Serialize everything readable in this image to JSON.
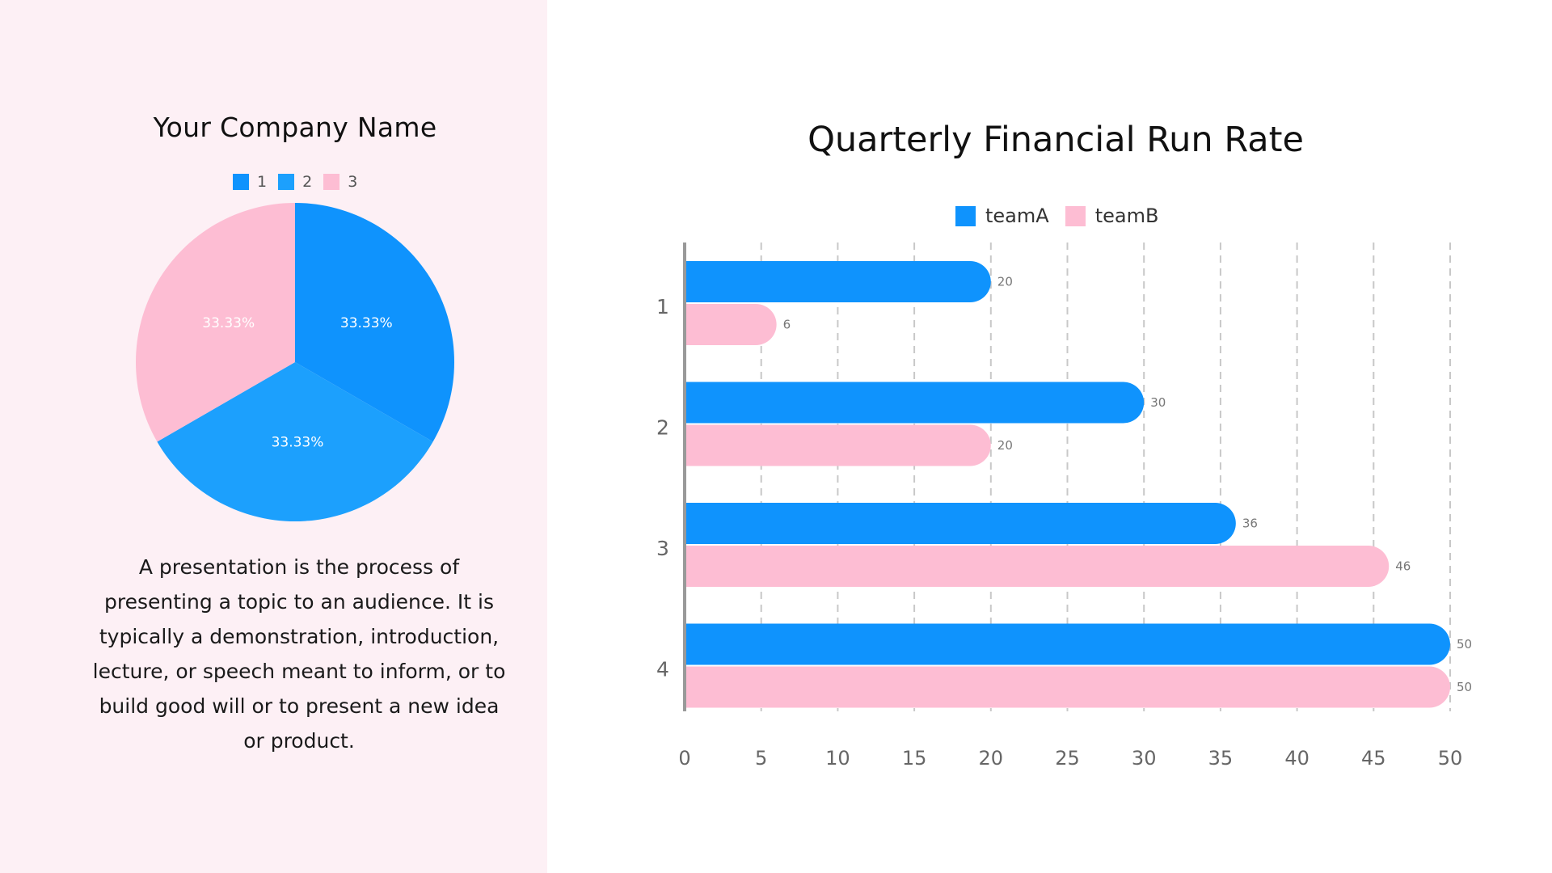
{
  "left_panel": {
    "company_title": "Your Company Name",
    "description": "A presentation is the process of presenting a topic to an audience. It is typically a demonstration, introduction, lecture, or speech meant to inform, or to build good will or to present a new idea or product.",
    "background": "#fdf0f5"
  },
  "colors": {
    "teamA": "#0f93fd",
    "teamB": "#fdbdd3",
    "slice1": "#0f93fd",
    "slice2": "#1ca0fd",
    "slice3": "#fdbdd3",
    "axis": "#999999",
    "grid": "#c8c8c8",
    "tick_text": "#666666"
  },
  "chart_data": [
    {
      "type": "pie",
      "title": "Your Company Name",
      "categories": [
        "1",
        "2",
        "3"
      ],
      "values": [
        33.33,
        33.33,
        33.33
      ],
      "labels": [
        "33.33%",
        "33.33%",
        "33.33%"
      ],
      "colors": [
        "#0f93fd",
        "#1ca0fd",
        "#fdbdd3"
      ],
      "legend_position": "top"
    },
    {
      "type": "bar",
      "orientation": "horizontal",
      "title": "Quarterly Financial Run Rate",
      "categories": [
        "1",
        "2",
        "3",
        "4"
      ],
      "series": [
        {
          "name": "teamA",
          "values": [
            20,
            30,
            36,
            50
          ],
          "color": "#0f93fd"
        },
        {
          "name": "teamB",
          "values": [
            6,
            20,
            46,
            50
          ],
          "color": "#fdbdd3"
        }
      ],
      "xlabel": "",
      "ylabel": "",
      "xlim": [
        0,
        50
      ],
      "xticks": [
        "0",
        "5",
        "10",
        "15",
        "20",
        "25",
        "30",
        "35",
        "40",
        "45",
        "50"
      ],
      "grid": "vertical dashed",
      "legend_position": "top",
      "data_labels": true
    }
  ]
}
